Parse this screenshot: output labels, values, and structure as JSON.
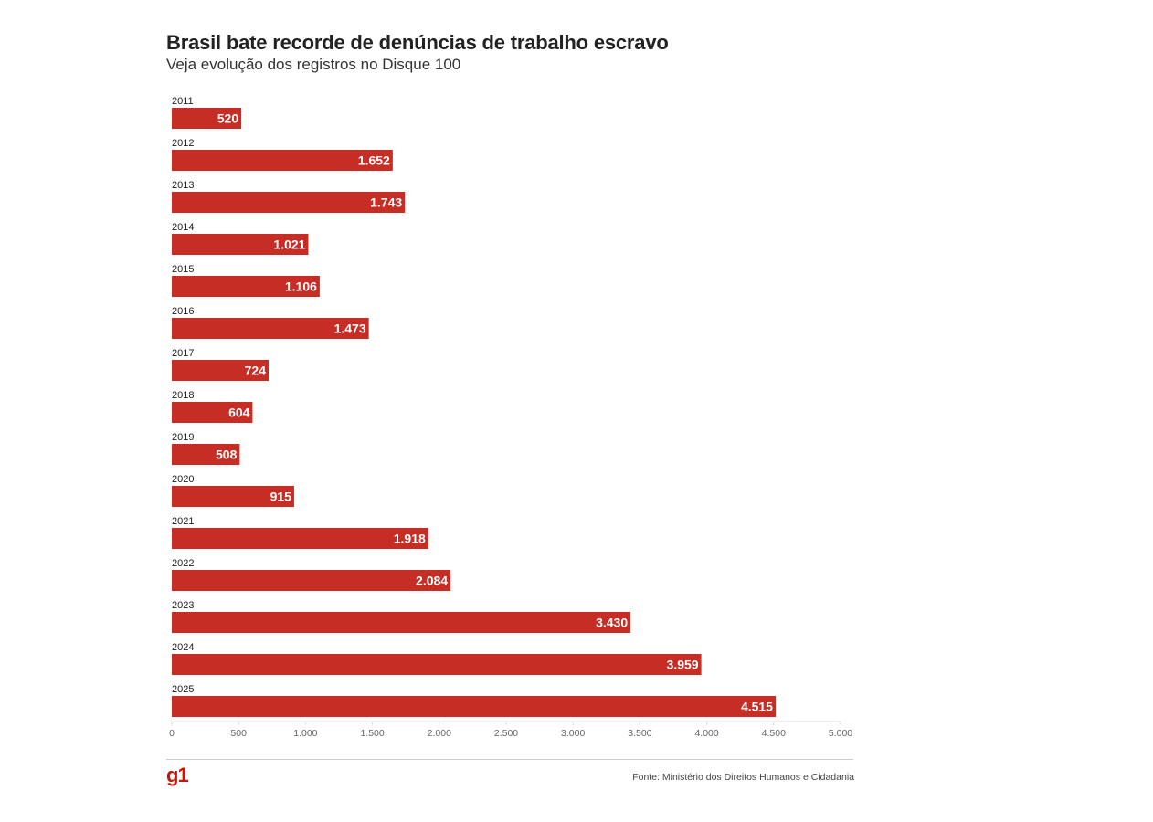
{
  "title": "Brasil bate recorde de denúncias de trabalho escravo",
  "subtitle": "Veja evolução dos registros no Disque 100",
  "source": "Fonte: Ministério dos Direitos Humanos e Cidadania",
  "logo": "g1",
  "colors": {
    "bar": "#c62d25",
    "axis": "#dddddd"
  },
  "chart_data": {
    "type": "bar",
    "orientation": "horizontal",
    "title": "Brasil bate recorde de denúncias de trabalho escravo",
    "subtitle": "Veja evolução dos registros no Disque 100",
    "xlabel": "",
    "ylabel": "",
    "categories": [
      "2011",
      "2012",
      "2013",
      "2014",
      "2015",
      "2016",
      "2017",
      "2018",
      "2019",
      "2020",
      "2021",
      "2022",
      "2023",
      "2024",
      "2025"
    ],
    "values": [
      520,
      1652,
      1743,
      1021,
      1106,
      1473,
      724,
      604,
      508,
      915,
      1918,
      2084,
      3430,
      3959,
      4515
    ],
    "value_labels": [
      "520",
      "1.652",
      "1.743",
      "1.021",
      "1.106",
      "1.473",
      "724",
      "604",
      "508",
      "915",
      "1.918",
      "2.084",
      "3.430",
      "3.959",
      "4.515"
    ],
    "xlim": [
      0,
      5000
    ],
    "ticks": [
      0,
      500,
      1000,
      1500,
      2000,
      2500,
      3000,
      3500,
      4000,
      4500,
      5000
    ],
    "tick_labels": [
      "0",
      "500",
      "1.000",
      "1.500",
      "2.000",
      "2.500",
      "3.000",
      "3.500",
      "4.000",
      "4.500",
      "5.000"
    ],
    "grid": false,
    "legend": "none"
  }
}
